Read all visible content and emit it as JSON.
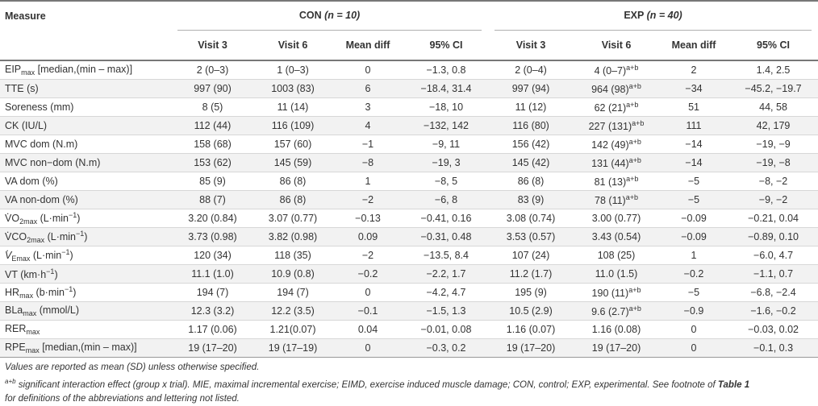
{
  "header": {
    "measure": "Measure",
    "con_group": "CON",
    "con_n": "(n = 10)",
    "exp_group": "EXP",
    "exp_n": "(n = 40)",
    "subcols": [
      "Visit 3",
      "Visit 6",
      "Mean diff",
      "95% CI"
    ]
  },
  "rows": [
    {
      "m": "EIP",
      "sub": "max",
      "suffix": " [median,(min – max)]",
      "c": [
        "2 (0–3)",
        "1 (0–3)",
        "0",
        "−1.3, 0.8"
      ],
      "e": [
        "2 (0–4)",
        "4 (0–7)",
        "2",
        "1.4, 2.5"
      ],
      "sig": "a+b"
    },
    {
      "m": "TTE (s)",
      "sub": "",
      "suffix": "",
      "c": [
        "997 (90)",
        "1003 (83)",
        "6",
        "−18.4, 31.4"
      ],
      "e": [
        "997 (94)",
        "964 (98)",
        "−34",
        "−45.2, −19.7"
      ],
      "sig": "a+b"
    },
    {
      "m": "Soreness (mm)",
      "sub": "",
      "suffix": "",
      "c": [
        "8 (5)",
        "11 (14)",
        "3",
        "−18, 10"
      ],
      "e": [
        "11 (12)",
        "62 (21)",
        "51",
        "44, 58"
      ],
      "sig": "a+b"
    },
    {
      "m": "CK (IU/L)",
      "sub": "",
      "suffix": "",
      "c": [
        "112 (44)",
        "116 (109)",
        "4",
        "−132, 142"
      ],
      "e": [
        "116 (80)",
        "227 (131)",
        "111",
        "42, 179"
      ],
      "sig": "a+b"
    },
    {
      "m": "MVC dom (N.m)",
      "sub": "",
      "suffix": "",
      "c": [
        "158 (68)",
        "157 (60)",
        "−1",
        "−9, 11"
      ],
      "e": [
        "156 (42)",
        "142 (49)",
        "−14",
        "−19, −9"
      ],
      "sig": "a+b"
    },
    {
      "m": "MVC non−dom (N.m)",
      "sub": "",
      "suffix": "",
      "c": [
        "153 (62)",
        "145 (59)",
        "−8",
        "−19, 3"
      ],
      "e": [
        "145 (42)",
        "131 (44)",
        "−14",
        "−19, −8"
      ],
      "sig": "a+b"
    },
    {
      "m": "VA dom (%)",
      "sub": "",
      "suffix": "",
      "c": [
        "85 (9)",
        "86 (8)",
        "1",
        "−8, 5"
      ],
      "e": [
        "86 (8)",
        "81 (13)",
        "−5",
        "−8, −2"
      ],
      "sig": "a+b"
    },
    {
      "m": "VA non-dom (%)",
      "sub": "",
      "suffix": "",
      "c": [
        "88 (7)",
        "86 (8)",
        "−2",
        "−6, 8"
      ],
      "e": [
        "83 (9)",
        "78 (11)",
        "−5",
        "−9, −2"
      ],
      "sig": "a+b"
    },
    {
      "m": "VO",
      "sub": "2max",
      "suffix": " (L·min−1)",
      "dot": true,
      "c": [
        "3.20 (0.84)",
        "3.07 (0.77)",
        "−0.13",
        "−0.41, 0.16"
      ],
      "e": [
        "3.08 (0.74)",
        "3.00 (0.77)",
        "−0.09",
        "−0.21, 0.04"
      ],
      "sig": ""
    },
    {
      "m": "VCO",
      "sub": "2max",
      "suffix": " (L·min−1)",
      "dot": true,
      "c": [
        "3.73 (0.98)",
        "3.82 (0.98)",
        "0.09",
        "−0.31, 0.48"
      ],
      "e": [
        "3.53 (0.57)",
        "3.43 (0.54)",
        "−0.09",
        "−0.89, 0.10"
      ],
      "sig": ""
    },
    {
      "m": "V",
      "sub": "Emax",
      "suffix": "  (L·min−1)",
      "dot": true,
      "italic": true,
      "c": [
        "120 (34)",
        "118 (35)",
        "−2",
        "−13.5, 8.4"
      ],
      "e": [
        "107 (24)",
        "108 (25)",
        "1",
        "−6.0, 4.7"
      ],
      "sig": ""
    },
    {
      "m": "VT (km·h−1)",
      "sub": "",
      "suffix": "",
      "c": [
        "11.1 (1.0)",
        "10.9 (0.8)",
        "−0.2",
        "−2.2, 1.7"
      ],
      "e": [
        "11.2 (1.7)",
        "11.0 (1.5)",
        "−0.2",
        "−1.1, 0.7"
      ],
      "sig": ""
    },
    {
      "m": "HR",
      "sub": "max",
      "suffix": " (b·min−1)",
      "c": [
        "194 (7)",
        "194 (7)",
        "0",
        "−4.2, 4.7"
      ],
      "e": [
        "195 (9)",
        "190 (11)",
        "−5",
        "−6.8, −2.4"
      ],
      "sig": "a+b"
    },
    {
      "m": "BLa",
      "sub": "max",
      "suffix": " (mmol/L)",
      "c": [
        "12.3 (3.2)",
        "12.2 (3.5)",
        "−0.1",
        "−1.5, 1.3"
      ],
      "e": [
        "10.5 (2.9)",
        "9.6 (2.7)",
        "−0.9",
        "−1.6, −0.2"
      ],
      "sig": "a+b"
    },
    {
      "m": "RER",
      "sub": "max",
      "suffix": "",
      "c": [
        "1.17 (0.06)",
        "1.21(0.07)",
        "0.04",
        "−0.01, 0.08"
      ],
      "e": [
        "1.16 (0.07)",
        "1.16 (0.08)",
        "0",
        "−0.03, 0.02"
      ],
      "sig": ""
    },
    {
      "m": "RPE",
      "sub": "max",
      "suffix": " [median,(min – max)]",
      "c": [
        "19 (17–20)",
        "19 (17–19)",
        "0",
        "−0.3, 0.2"
      ],
      "e": [
        "19 (17–20)",
        "19 (17–20)",
        "0",
        "−0.1, 0.3"
      ],
      "sig": ""
    }
  ],
  "notes": {
    "line1": "Values are reported as mean (SD) unless otherwise specified.",
    "sym": "a+b",
    "line2": " significant interaction effect (group x trial). MIE, maximal incremental exercise; EIMD, exercise induced muscle damage; CON, control; EXP, experimental. See footnote of ",
    "table_ref": "Table 1",
    "line3": "for definitions of the abbreviations and lettering not listed."
  }
}
